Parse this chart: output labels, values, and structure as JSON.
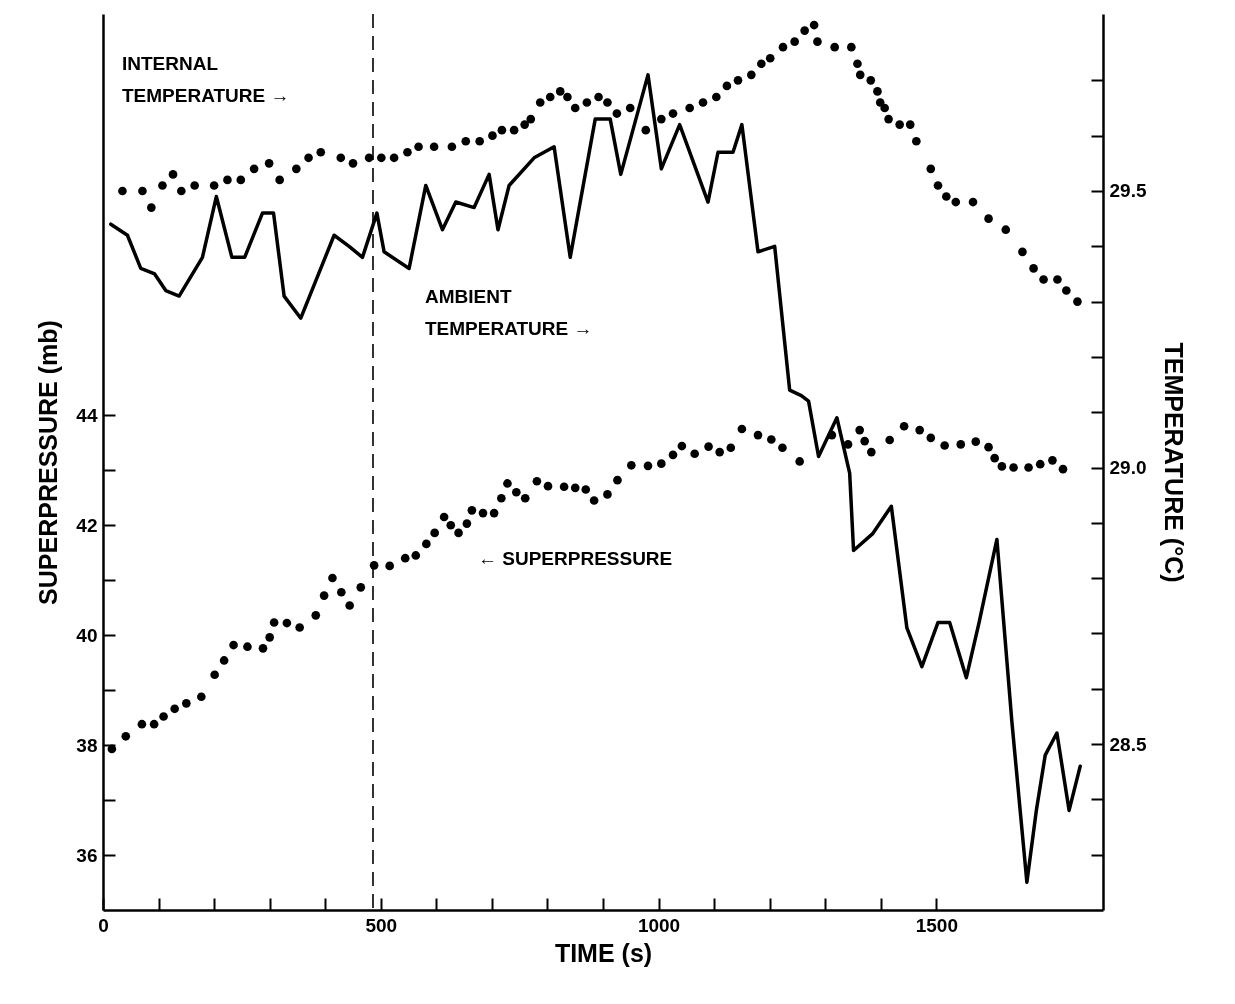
{
  "chart_data": {
    "type": "scatter",
    "xlabel": "TIME (s)",
    "ylabel": "SUPERPRESSURE (mb)",
    "y2label": "TEMPERATURE (°C)",
    "xlim": [
      0,
      1800
    ],
    "xticks": [
      0,
      {
        "value": 100,
        "label": null
      },
      {
        "value": 200,
        "label": null
      },
      {
        "value": 300,
        "label": null
      },
      {
        "value": 400,
        "label": null
      },
      500,
      {
        "value": 600,
        "label": null
      },
      {
        "value": 700,
        "label": null
      },
      {
        "value": 800,
        "label": null
      },
      {
        "value": 900,
        "label": null
      },
      1000,
      {
        "value": 1100,
        "label": null
      },
      {
        "value": 1200,
        "label": null
      },
      {
        "value": 1300,
        "label": null
      },
      {
        "value": 1400,
        "label": null
      },
      1500
    ],
    "ylim": [
      35,
      51.3
    ],
    "yticks": [
      36,
      {
        "value": 37,
        "label": null
      },
      38,
      {
        "value": 39,
        "label": null
      },
      40,
      {
        "value": 41,
        "label": null
      },
      42,
      {
        "value": 43,
        "label": null
      },
      44
    ],
    "y2lim": [
      28.2,
      29.82
    ],
    "y2ticks": [
      {
        "value": 28.3,
        "label": null
      },
      {
        "value": 28.4,
        "label": null
      },
      28.5,
      {
        "value": 28.6,
        "label": null
      },
      {
        "value": 28.7,
        "label": null
      },
      {
        "value": 28.8,
        "label": null
      },
      {
        "value": 28.9,
        "label": null
      },
      {
        "value": 29,
        "label": "29.0"
      },
      {
        "value": 29.1,
        "label": null
      },
      {
        "value": 29.2,
        "label": null
      },
      {
        "value": 29.3,
        "label": null
      },
      {
        "value": 29.4,
        "label": null
      },
      29.5,
      {
        "value": 29.6,
        "label": null
      },
      {
        "value": 29.7,
        "label": null
      }
    ],
    "series": [
      {
        "marker": "circle",
        "color": "#000000",
        "x": [
          16,
          41,
          70,
          92,
          109,
          129,
          150,
          177,
          201,
          218,
          235,
          260,
          288,
          300,
          308,
          331,
          354,
          383,
          398,
          413,
          429,
          444,
          464,
          488,
          516,
          544,
          563,
          582,
          597,
          614,
          626,
          640,
          655,
          664,
          684,
          704,
          717,
          728,
          744,
          760,
          781,
          801,
          830,
          850,
          869,
          884,
          908,
          926,
          951,
          981,
          1005,
          1026,
          1042,
          1065,
          1090,
          1110,
          1130,
          1150,
          1179,
          1203,
          1223,
          1254,
          1312,
          1341,
          1362,
          1371,
          1383,
          1416,
          1442,
          1470,
          1490,
          1515,
          1544,
          1571,
          1594,
          1605,
          1618,
          1639,
          1666,
          1687,
          1709,
          1728
        ],
        "values": [
          37.93,
          38.16,
          38.38,
          38.38,
          38.52,
          38.66,
          38.76,
          38.88,
          39.28,
          39.54,
          39.82,
          39.79,
          39.76,
          39.96,
          40.23,
          40.22,
          40.14,
          40.36,
          40.72,
          41.04,
          40.78,
          40.54,
          40.87,
          41.27,
          41.26,
          41.4,
          41.45,
          41.66,
          41.86,
          42.15,
          42.0,
          41.86,
          42.03,
          42.27,
          42.22,
          42.22,
          42.49,
          42.76,
          42.6,
          42.49,
          42.8,
          42.71,
          42.7,
          42.68,
          42.65,
          42.45,
          42.56,
          42.82,
          43.09,
          43.08,
          43.12,
          43.28,
          43.44,
          43.3,
          43.43,
          43.33,
          43.41,
          43.75,
          43.64,
          43.56,
          43.41,
          43.16,
          43.64,
          43.47,
          43.73,
          43.53,
          43.33,
          43.55,
          43.8,
          43.73,
          43.59,
          43.45,
          43.47,
          43.52,
          43.42,
          43.22,
          43.07,
          43.05,
          43.05,
          43.11,
          43.18,
          43.02
        ]
      },
      {
        "marker": "circle",
        "axis": "y2",
        "color": "#000000",
        "x": [
          35,
          71,
          87,
          107,
          126,
          141,
          165,
          200,
          224,
          248,
          272,
          299,
          318,
          348,
          370,
          392,
          428,
          450,
          479,
          501,
          524,
          548,
          568,
          596,
          628,
          653,
          678,
          701,
          718,
          740,
          759,
          770,
          787,
          805,
          823,
          836,
          850,
          871,
          892,
          908,
          925,
          949,
          977,
          1005,
          1026,
          1056,
          1080,
          1104,
          1123,
          1143,
          1167,
          1185,
          1201,
          1224,
          1245,
          1263,
          1280,
          1286,
          1317,
          1347,
          1358,
          1363,
          1382,
          1394,
          1399,
          1407,
          1414,
          1434,
          1453,
          1464,
          1490,
          1503,
          1518,
          1535,
          1566,
          1594,
          1625,
          1655,
          1675,
          1693,
          1718,
          1734,
          1754
        ],
        "values": [
          29.5,
          29.5,
          29.47,
          29.51,
          29.53,
          29.5,
          29.51,
          29.51,
          29.52,
          29.52,
          29.54,
          29.55,
          29.52,
          29.54,
          29.56,
          29.57,
          29.56,
          29.55,
          29.56,
          29.56,
          29.56,
          29.57,
          29.58,
          29.58,
          29.58,
          29.59,
          29.59,
          29.6,
          29.61,
          29.61,
          29.62,
          29.63,
          29.66,
          29.67,
          29.68,
          29.67,
          29.65,
          29.66,
          29.67,
          29.66,
          29.64,
          29.65,
          29.61,
          29.63,
          29.64,
          29.65,
          29.66,
          29.67,
          29.69,
          29.7,
          29.71,
          29.73,
          29.74,
          29.76,
          29.77,
          29.79,
          29.8,
          29.77,
          29.76,
          29.76,
          29.73,
          29.71,
          29.7,
          29.68,
          29.66,
          29.65,
          29.63,
          29.62,
          29.62,
          29.59,
          29.54,
          29.51,
          29.49,
          29.48,
          29.48,
          29.45,
          29.43,
          29.39,
          29.36,
          29.34,
          29.34,
          29.32,
          29.3
        ]
      },
      {
        "type": "line",
        "axis": "y2",
        "color": "#000000",
        "x": [
          14,
          44,
          68,
          93,
          113,
          137,
          179,
          204,
          232,
          255,
          287,
          307,
          326,
          356,
          416,
          443,
          467,
          493,
          506,
          551,
          581,
          611,
          635,
          668,
          695,
          711,
          731,
          776,
          812,
          841,
          886,
          913,
          932,
          981,
          1005,
          1038,
          1089,
          1107,
          1134,
          1150,
          1179,
          1209,
          1236,
          1257,
          1270,
          1288,
          1321,
          1344,
          1351,
          1385,
          1419,
          1447,
          1474,
          1503,
          1524,
          1554,
          1577,
          1609,
          1636,
          1663,
          1680,
          1696,
          1717,
          1739,
          1759
        ],
        "values": [
          29.44,
          29.42,
          29.36,
          29.35,
          29.32,
          29.31,
          29.38,
          29.49,
          29.38,
          29.38,
          29.46,
          29.46,
          29.31,
          29.27,
          29.42,
          29.4,
          29.38,
          29.46,
          29.39,
          29.36,
          29.51,
          29.43,
          29.48,
          29.47,
          29.53,
          29.43,
          29.51,
          29.56,
          29.58,
          29.38,
          29.63,
          29.63,
          29.53,
          29.71,
          29.54,
          29.62,
          29.48,
          29.57,
          29.57,
          29.62,
          29.39,
          29.4,
          29.14,
          29.13,
          29.12,
          29.02,
          29.09,
          28.99,
          28.85,
          28.88,
          28.93,
          28.71,
          28.64,
          28.72,
          28.72,
          28.62,
          28.72,
          28.87,
          28.54,
          28.25,
          28.38,
          28.48,
          28.52,
          28.38,
          28.46
        ]
      }
    ],
    "ref_lines": [
      {
        "axis": "x",
        "value": 486,
        "line_style": "dashed"
      }
    ],
    "annotations": [
      "INTERNAL\nTEMPERATURE →",
      "AMBIENT\nTEMPERATURE →",
      "← SUPERPRESSURE"
    ]
  }
}
